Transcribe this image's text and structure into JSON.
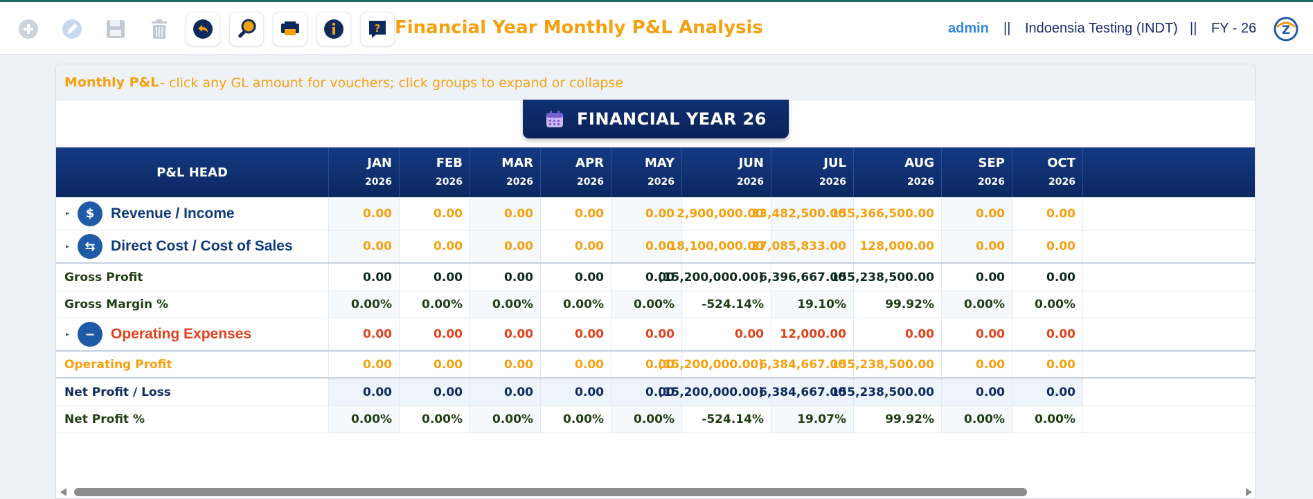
{
  "toolbar": {
    "title": "Financial Year Monthly P&L Analysis",
    "user": "admin",
    "separator": "||",
    "company": "Indoensia Testing (INDT)",
    "fy": "FY - 26",
    "buttons": [
      {
        "icon": "add-icon",
        "enabled": false
      },
      {
        "icon": "edit-icon",
        "enabled": false
      },
      {
        "icon": "save-icon",
        "enabled": false
      },
      {
        "icon": "delete-icon",
        "enabled": false
      },
      {
        "icon": "back-icon",
        "enabled": true
      },
      {
        "icon": "search-icon",
        "enabled": true
      },
      {
        "icon": "print-icon",
        "enabled": true
      },
      {
        "icon": "info-icon",
        "enabled": true
      },
      {
        "icon": "help-icon",
        "enabled": true
      }
    ]
  },
  "panel": {
    "title": "Monthly P&L",
    "hint": "- click any GL amount for vouchers; click groups to expand or collapse",
    "fy_badge": "FINANCIAL YEAR 26"
  },
  "table": {
    "head_label": "P&L HEAD",
    "months": [
      {
        "m": "JAN",
        "y": "2026"
      },
      {
        "m": "FEB",
        "y": "2026"
      },
      {
        "m": "MAR",
        "y": "2026"
      },
      {
        "m": "APR",
        "y": "2026"
      },
      {
        "m": "MAY",
        "y": "2026"
      },
      {
        "m": "JUN",
        "y": "2026"
      },
      {
        "m": "JUL",
        "y": "2026"
      },
      {
        "m": "AUG",
        "y": "2026"
      },
      {
        "m": "SEP",
        "y": "2026"
      },
      {
        "m": "OCT",
        "y": "2026"
      }
    ],
    "rows": [
      {
        "label": "Revenue / Income",
        "type": "group",
        "icon": "dollar-icon",
        "glyph": "$",
        "color": "#0e3a7a",
        "value_color": "#f5a00f",
        "values": [
          "0.00",
          "0.00",
          "0.00",
          "0.00",
          "0.00",
          "2,900,000.00",
          "33,482,500.00",
          "155,366,500.00",
          "0.00",
          "0.00"
        ]
      },
      {
        "label": "Direct Cost / Cost of Sales",
        "type": "group",
        "icon": "exchange-icon",
        "glyph": "⇆",
        "color": "#0e3a7a",
        "value_color": "#f5a00f",
        "values": [
          "0.00",
          "0.00",
          "0.00",
          "0.00",
          "0.00",
          "18,100,000.00",
          "27,085,833.00",
          "128,000.00",
          "0.00",
          "0.00"
        ]
      },
      {
        "label": "Gross Profit",
        "type": "summary",
        "color": "#1f3d13",
        "value_color": "#0e2a1c",
        "values": [
          "0.00",
          "0.00",
          "0.00",
          "0.00",
          "0.00",
          "(15,200,000.00)",
          "6,396,667.00",
          "155,238,500.00",
          "0.00",
          "0.00"
        ]
      },
      {
        "label": "Gross Margin %",
        "type": "summary",
        "color": "#1f3d13",
        "value_color": "#1f3d13",
        "values": [
          "0.00%",
          "0.00%",
          "0.00%",
          "0.00%",
          "0.00%",
          "-524.14%",
          "19.10%",
          "99.92%",
          "0.00%",
          "0.00%"
        ]
      },
      {
        "label": "Operating Expenses",
        "type": "group",
        "icon": "minus-icon",
        "glyph": "−",
        "color": "#e0421b",
        "value_color": "#e0421b",
        "values": [
          "0.00",
          "0.00",
          "0.00",
          "0.00",
          "0.00",
          "0.00",
          "12,000.00",
          "0.00",
          "0.00",
          "0.00"
        ]
      },
      {
        "label": "Operating Profit",
        "type": "summary",
        "color": "#f5a00f",
        "value_color": "#f5a00f",
        "values": [
          "0.00",
          "0.00",
          "0.00",
          "0.00",
          "0.00",
          "(15,200,000.00)",
          "6,384,667.00",
          "155,238,500.00",
          "0.00",
          "0.00"
        ]
      },
      {
        "label": "Net Profit / Loss",
        "type": "summary",
        "color": "#0e2a5c",
        "value_color": "#0e2a5c",
        "values": [
          "0.00",
          "0.00",
          "0.00",
          "0.00",
          "0.00",
          "(15,200,000.00)",
          "6,384,667.00",
          "155,238,500.00",
          "0.00",
          "0.00"
        ]
      },
      {
        "label": "Net Profit %",
        "type": "summary",
        "color": "#1f3d13",
        "value_color": "#1f3d13",
        "values": [
          "0.00%",
          "0.00%",
          "0.00%",
          "0.00%",
          "0.00%",
          "-524.14%",
          "19.07%",
          "99.92%",
          "0.00%",
          "0.00%"
        ]
      }
    ]
  }
}
